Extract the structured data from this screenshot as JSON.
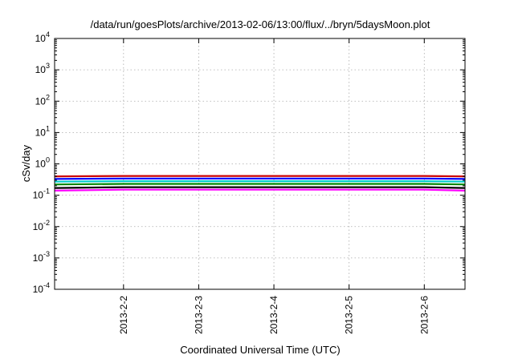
{
  "chart_data": {
    "type": "line",
    "title": "/data/run/goesPlots/archive/2013-02-06/13:00/flux/../bryn/5daysMoon.plot",
    "xlabel": "Coordinated Universal Time (UTC)",
    "ylabel": "cSv/day",
    "yscale": "log",
    "ylim": [
      0.0001,
      10000
    ],
    "xlim": [
      "2013-02-01T02:00",
      "2013-02-06T13:00"
    ],
    "y_ticks": [
      {
        "value": 0.0001,
        "base": "10",
        "exp": "-4"
      },
      {
        "value": 0.001,
        "base": "10",
        "exp": "-3"
      },
      {
        "value": 0.01,
        "base": "10",
        "exp": "-2"
      },
      {
        "value": 0.1,
        "base": "10",
        "exp": "-1"
      },
      {
        "value": 1,
        "base": "10",
        "exp": "0"
      },
      {
        "value": 10,
        "base": "10",
        "exp": "1"
      },
      {
        "value": 100,
        "base": "10",
        "exp": "2"
      },
      {
        "value": 1000,
        "base": "10",
        "exp": "3"
      },
      {
        "value": 10000,
        "base": "10",
        "exp": "4"
      }
    ],
    "x_ticks": [
      {
        "value": "2013-02-02T00:00",
        "label": "2013-2-2"
      },
      {
        "value": "2013-02-03T00:00",
        "label": "2013-2-3"
      },
      {
        "value": "2013-02-04T00:00",
        "label": "2013-2-4"
      },
      {
        "value": "2013-02-05T00:00",
        "label": "2013-2-5"
      },
      {
        "value": "2013-02-06T00:00",
        "label": "2013-2-6"
      }
    ],
    "grid": true,
    "series": [
      {
        "color": "#ff00ff",
        "x": [
          "2013-02-01T02:00",
          "2013-02-02T00:00",
          "2013-02-03T00:00",
          "2013-02-04T00:00",
          "2013-02-05T00:00",
          "2013-02-06T00:00",
          "2013-02-06T13:00"
        ],
        "values": [
          0.14,
          0.15,
          0.15,
          0.15,
          0.15,
          0.15,
          0.14
        ]
      },
      {
        "color": "#000000",
        "x": [
          "2013-02-01T02:00",
          "2013-02-02T00:00",
          "2013-02-03T00:00",
          "2013-02-04T00:00",
          "2013-02-05T00:00",
          "2013-02-06T00:00",
          "2013-02-06T13:00"
        ],
        "values": [
          0.17,
          0.18,
          0.18,
          0.18,
          0.18,
          0.18,
          0.17
        ]
      },
      {
        "color": "#008800",
        "x": [
          "2013-02-01T02:00",
          "2013-02-02T00:00",
          "2013-02-03T00:00",
          "2013-02-04T00:00",
          "2013-02-05T00:00",
          "2013-02-06T00:00",
          "2013-02-06T13:00"
        ],
        "values": [
          0.22,
          0.23,
          0.23,
          0.23,
          0.23,
          0.23,
          0.22
        ]
      },
      {
        "color": "#00cccc",
        "x": [
          "2013-02-01T02:00",
          "2013-02-02T00:00",
          "2013-02-03T00:00",
          "2013-02-04T00:00",
          "2013-02-05T00:00",
          "2013-02-06T00:00",
          "2013-02-06T13:00"
        ],
        "values": [
          0.27,
          0.28,
          0.28,
          0.28,
          0.28,
          0.28,
          0.27
        ]
      },
      {
        "color": "#0000ff",
        "x": [
          "2013-02-01T02:00",
          "2013-02-02T00:00",
          "2013-02-03T00:00",
          "2013-02-04T00:00",
          "2013-02-05T00:00",
          "2013-02-06T00:00",
          "2013-02-06T13:00"
        ],
        "values": [
          0.33,
          0.34,
          0.34,
          0.34,
          0.34,
          0.34,
          0.33
        ]
      },
      {
        "color": "#cc0000",
        "x": [
          "2013-02-01T02:00",
          "2013-02-02T00:00",
          "2013-02-03T00:00",
          "2013-02-04T00:00",
          "2013-02-05T00:00",
          "2013-02-06T00:00",
          "2013-02-06T13:00"
        ],
        "values": [
          0.4,
          0.41,
          0.41,
          0.41,
          0.41,
          0.41,
          0.4
        ]
      }
    ]
  }
}
